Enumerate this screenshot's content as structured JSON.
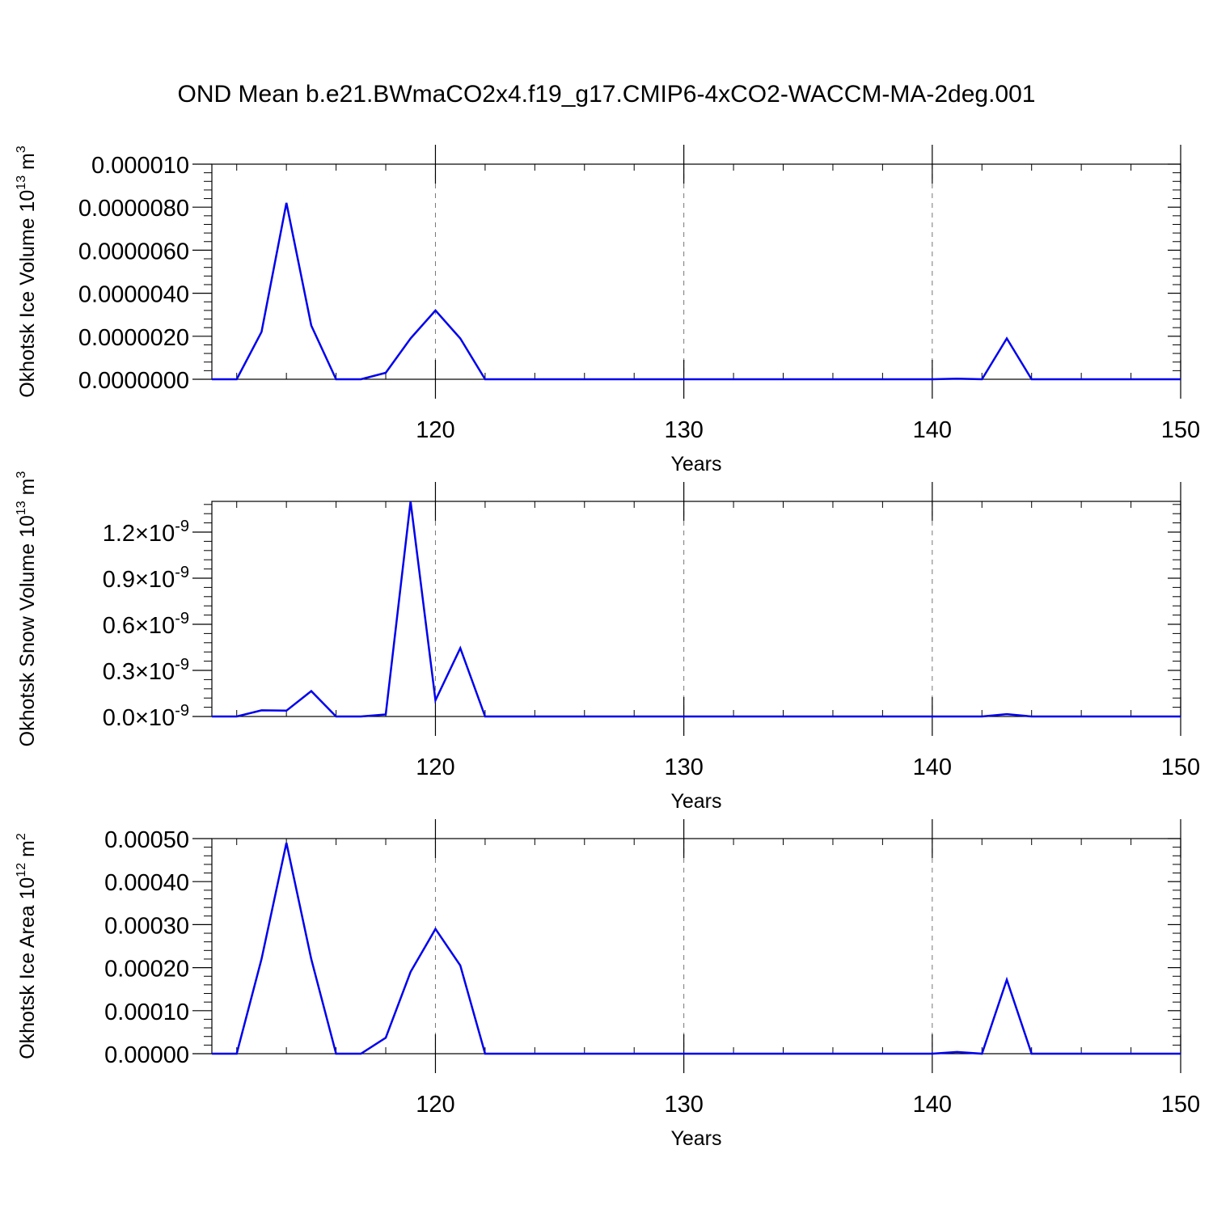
{
  "title": "OND Mean b.e21.BWmaCO2x4.f19_g17.CMIP6-4xCO2-WACCM-MA-2deg.001",
  "colors": {
    "line": "#0000ee",
    "axis": "#000000",
    "grid": "#777777"
  },
  "chart_data": [
    {
      "type": "line",
      "ylabel": "Okhotsk Ice Volume 10",
      "ylabel_exp": "13",
      "ylabel_unit": "m",
      "ylabel_unit_exp": "3",
      "xlabel": "Years",
      "xlim": [
        111,
        150
      ],
      "ylim": [
        0,
        1e-05
      ],
      "grid": "vertical dashed",
      "x_ticks": [
        {
          "value": 120,
          "label": "120"
        },
        {
          "value": 130,
          "label": "130"
        },
        {
          "value": 140,
          "label": "140"
        },
        {
          "value": 150,
          "label": "150"
        }
      ],
      "y_ticks": [
        {
          "value": 0.0,
          "base": "0.0000000"
        },
        {
          "value": 2e-06,
          "base": "0.0000020"
        },
        {
          "value": 4e-06,
          "base": "0.0000040"
        },
        {
          "value": 6e-06,
          "base": "0.0000060"
        },
        {
          "value": 8e-06,
          "base": "0.0000080"
        },
        {
          "value": 1e-05,
          "base": "0.000010"
        }
      ],
      "x": [
        111,
        112,
        113,
        114,
        115,
        116,
        117,
        118,
        119,
        120,
        121,
        122,
        123,
        124,
        125,
        126,
        127,
        128,
        129,
        130,
        131,
        132,
        133,
        134,
        135,
        136,
        137,
        138,
        139,
        140,
        141,
        142,
        143,
        144,
        145,
        146,
        147,
        148,
        149,
        150
      ],
      "values": [
        0,
        0,
        2.2e-06,
        8.2e-06,
        2.5e-06,
        0,
        0,
        3e-07,
        1.9e-06,
        3.2e-06,
        1.9e-06,
        0,
        0,
        0,
        0,
        0,
        0,
        0,
        0,
        0,
        0,
        0,
        0,
        0,
        0,
        0,
        0,
        0,
        0,
        0,
        3e-08,
        0,
        1.9e-06,
        0,
        0,
        0,
        0,
        0,
        0,
        0
      ]
    },
    {
      "type": "line",
      "ylabel": "Okhotsk Snow Volume 10",
      "ylabel_exp": "13",
      "ylabel_unit": "m",
      "ylabel_unit_exp": "3",
      "xlabel": "Years",
      "xlim": [
        111,
        150
      ],
      "ylim": [
        0,
        1.4e-09
      ],
      "grid": "vertical dashed",
      "x_ticks": [
        {
          "value": 120,
          "label": "120"
        },
        {
          "value": 130,
          "label": "130"
        },
        {
          "value": 140,
          "label": "140"
        },
        {
          "value": 150,
          "label": "150"
        }
      ],
      "y_ticks": [
        {
          "value": 0.0,
          "base": "0.0×10",
          "exp": "-9"
        },
        {
          "value": 3e-10,
          "base": "0.3×10",
          "exp": "-9"
        },
        {
          "value": 6e-10,
          "base": "0.6×10",
          "exp": "-9"
        },
        {
          "value": 9e-10,
          "base": "0.9×10",
          "exp": "-9"
        },
        {
          "value": 1.2e-09,
          "base": "1.2×10",
          "exp": "-9"
        }
      ],
      "x": [
        111,
        112,
        113,
        114,
        115,
        116,
        117,
        118,
        119,
        120,
        121,
        122,
        123,
        124,
        125,
        126,
        127,
        128,
        129,
        130,
        131,
        132,
        133,
        134,
        135,
        136,
        137,
        138,
        139,
        140,
        141,
        142,
        143,
        144,
        145,
        146,
        147,
        148,
        149,
        150
      ],
      "values": [
        0,
        0,
        4e-11,
        3.8e-11,
        1.65e-10,
        0,
        0,
        1.3e-11,
        1.4e-09,
        1.05e-10,
        4.45e-10,
        0,
        0,
        0,
        0,
        0,
        0,
        0,
        0,
        0,
        0,
        0,
        0,
        0,
        0,
        0,
        0,
        0,
        0,
        0,
        0,
        0,
        1.5e-11,
        0,
        0,
        0,
        0,
        0,
        0,
        0
      ]
    },
    {
      "type": "line",
      "ylabel": "Okhotsk Ice Area 10",
      "ylabel_exp": "12",
      "ylabel_unit": "m",
      "ylabel_unit_exp": "2",
      "xlabel": "Years",
      "xlim": [
        111,
        150
      ],
      "ylim": [
        0,
        0.0005
      ],
      "grid": "vertical dashed",
      "x_ticks": [
        {
          "value": 120,
          "label": "120"
        },
        {
          "value": 130,
          "label": "130"
        },
        {
          "value": 140,
          "label": "140"
        },
        {
          "value": 150,
          "label": "150"
        }
      ],
      "y_ticks": [
        {
          "value": 0.0,
          "base": "0.00000"
        },
        {
          "value": 0.0001,
          "base": "0.00010"
        },
        {
          "value": 0.0002,
          "base": "0.00020"
        },
        {
          "value": 0.0003,
          "base": "0.00030"
        },
        {
          "value": 0.0004,
          "base": "0.00040"
        },
        {
          "value": 0.0005,
          "base": "0.00050"
        }
      ],
      "x": [
        111,
        112,
        113,
        114,
        115,
        116,
        117,
        118,
        119,
        120,
        121,
        122,
        123,
        124,
        125,
        126,
        127,
        128,
        129,
        130,
        131,
        132,
        133,
        134,
        135,
        136,
        137,
        138,
        139,
        140,
        141,
        142,
        143,
        144,
        145,
        146,
        147,
        148,
        149,
        150
      ],
      "values": [
        0,
        0,
        0.00022,
        0.00049,
        0.00022,
        0,
        0,
        3.7e-05,
        0.00019,
        0.00029,
        0.000205,
        0,
        0,
        0,
        0,
        0,
        0,
        0,
        0,
        0,
        0,
        0,
        0,
        0,
        0,
        0,
        0,
        0,
        0,
        0,
        4e-06,
        0,
        0.000172,
        0,
        0,
        0,
        0,
        0,
        0,
        0
      ]
    }
  ]
}
